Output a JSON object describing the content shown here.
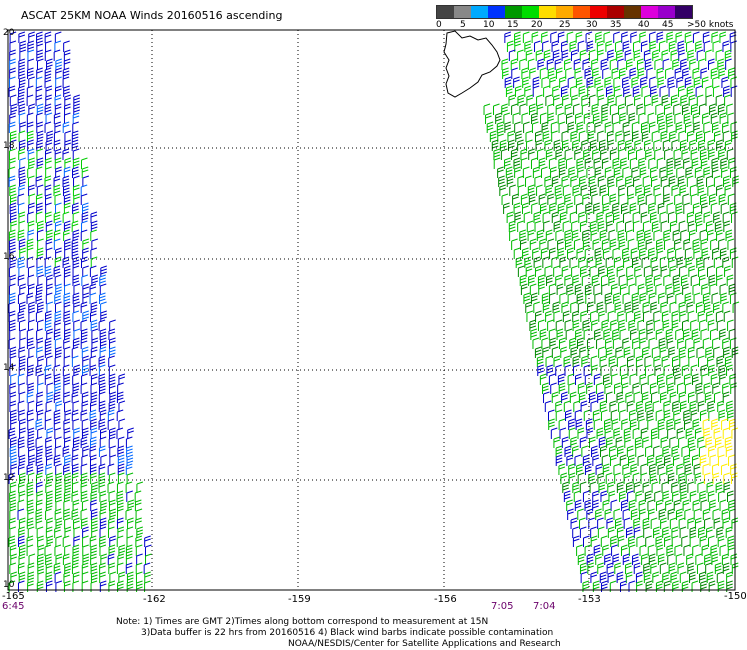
{
  "title": "ASCAT 25KM NOAA Winds 20160516 ascending",
  "legend": {
    "labels": [
      "0",
      "5",
      "10",
      "15",
      "20",
      "25",
      "30",
      "35",
      "40",
      "45",
      ">50 knots"
    ],
    "colors": [
      "#444444",
      "#888888",
      "#00aaff",
      "#0033ff",
      "#009900",
      "#00dd00",
      "#ffdd00",
      "#ffaa00",
      "#ff5500",
      "#ee0000",
      "#aa0000",
      "#663300",
      "#dd00dd",
      "#9900cc",
      "#330066"
    ]
  },
  "map": {
    "lon_labels": [
      "-165",
      "-162",
      "-159",
      "-156",
      "-153",
      "-150"
    ],
    "lat_labels": [
      "20",
      "18",
      "16",
      "14",
      "12",
      "10"
    ],
    "time_labels": [
      "6:45",
      "7:05",
      "7:04"
    ],
    "grid": true
  },
  "notes": {
    "line1": "Note: 1) Times are GMT 2)Times along bottom correspond to measurement at 15N",
    "line2": "3)Data buffer is 22 hrs from 20160516 4) Black wind barbs indicate possible contamination",
    "line3": "NOAA/NESDIS/Center for Satellite Applications and Research"
  },
  "swaths": [
    {
      "name": "western-swath",
      "dominant_colors": [
        "#0000cc",
        "#00cc00",
        "#0066ff"
      ]
    },
    {
      "name": "eastern-swath",
      "dominant_colors": [
        "#00bb00",
        "#008800",
        "#0000cc",
        "#ffee00"
      ]
    }
  ]
}
